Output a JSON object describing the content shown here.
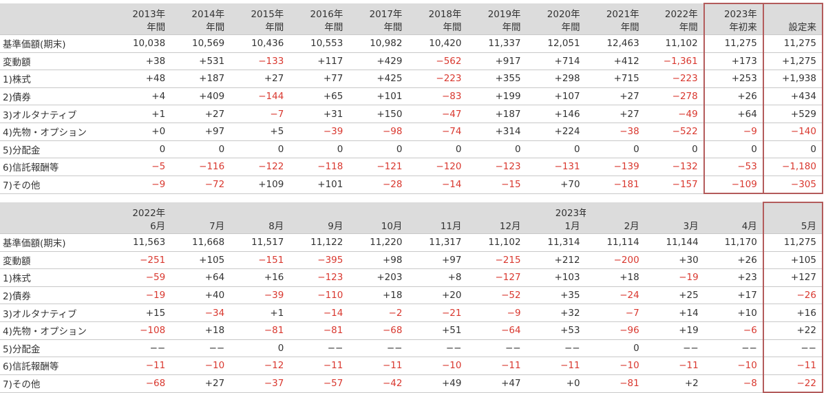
{
  "annual": {
    "columns": [
      {
        "l1": "2013年",
        "l2": "年間"
      },
      {
        "l1": "2014年",
        "l2": "年間"
      },
      {
        "l1": "2015年",
        "l2": "年間"
      },
      {
        "l1": "2016年",
        "l2": "年間"
      },
      {
        "l1": "2017年",
        "l2": "年間"
      },
      {
        "l1": "2018年",
        "l2": "年間"
      },
      {
        "l1": "2019年",
        "l2": "年間"
      },
      {
        "l1": "2020年",
        "l2": "年間"
      },
      {
        "l1": "2021年",
        "l2": "年間"
      },
      {
        "l1": "2022年",
        "l2": "年間"
      },
      {
        "l1": "2023年",
        "l2": "年初来"
      },
      {
        "l1": "",
        "l2": "設定来"
      }
    ],
    "rows": [
      {
        "label": "基準価額(期末)",
        "values": [
          "10,038",
          "10,569",
          "10,436",
          "10,553",
          "10,982",
          "10,420",
          "11,337",
          "12,051",
          "12,463",
          "11,102",
          "11,275",
          "11,275"
        ]
      },
      {
        "label": "変動額",
        "values": [
          "+38",
          "+531",
          "−133",
          "+117",
          "+429",
          "−562",
          "+917",
          "+714",
          "+412",
          "−1,361",
          "+173",
          "+1,275"
        ]
      },
      {
        "label": "1)株式",
        "values": [
          "+48",
          "+187",
          "+27",
          "+77",
          "+425",
          "−223",
          "+355",
          "+298",
          "+715",
          "−223",
          "+253",
          "+1,938"
        ]
      },
      {
        "label": "2)債券",
        "values": [
          "+4",
          "+409",
          "−144",
          "+65",
          "+101",
          "−83",
          "+199",
          "+107",
          "+27",
          "−278",
          "+26",
          "+434"
        ]
      },
      {
        "label": "3)オルタナティブ",
        "values": [
          "+1",
          "+27",
          "−7",
          "+31",
          "+150",
          "−47",
          "+187",
          "+146",
          "+27",
          "−49",
          "+64",
          "+529"
        ]
      },
      {
        "label": "4)先物・オプション",
        "values": [
          "+0",
          "+97",
          "+5",
          "−39",
          "−98",
          "−74",
          "+314",
          "+224",
          "−38",
          "−522",
          "−9",
          "−140"
        ]
      },
      {
        "label": "5)分配金",
        "values": [
          "0",
          "0",
          "0",
          "0",
          "0",
          "0",
          "0",
          "0",
          "0",
          "0",
          "0",
          "0"
        ]
      },
      {
        "label": "6)信託報酬等",
        "values": [
          "−5",
          "−116",
          "−122",
          "−118",
          "−121",
          "−120",
          "−123",
          "−131",
          "−139",
          "−132",
          "−53",
          "−1,180"
        ]
      },
      {
        "label": "7)その他",
        "values": [
          "−9",
          "−72",
          "+109",
          "+101",
          "−28",
          "−14",
          "−15",
          "+70",
          "−181",
          "−157",
          "−109",
          "−305"
        ]
      }
    ]
  },
  "monthly": {
    "year_2022": "2022年",
    "year_2023": "2023年",
    "months": [
      "6月",
      "7月",
      "8月",
      "9月",
      "10月",
      "11月",
      "12月",
      "1月",
      "2月",
      "3月",
      "4月",
      "5月"
    ],
    "rows": [
      {
        "label": "基準価額(期末)",
        "values": [
          "11,563",
          "11,668",
          "11,517",
          "11,122",
          "11,220",
          "11,317",
          "11,102",
          "11,314",
          "11,114",
          "11,144",
          "11,170",
          "11,275"
        ]
      },
      {
        "label": "変動額",
        "values": [
          "−251",
          "+105",
          "−151",
          "−395",
          "+98",
          "+97",
          "−215",
          "+212",
          "−200",
          "+30",
          "+26",
          "+105"
        ]
      },
      {
        "label": "1)株式",
        "values": [
          "−59",
          "+64",
          "+16",
          "−123",
          "+203",
          "+8",
          "−127",
          "+103",
          "+18",
          "−19",
          "+23",
          "+127"
        ]
      },
      {
        "label": "2)債券",
        "values": [
          "−19",
          "+40",
          "−39",
          "−110",
          "+18",
          "+20",
          "−52",
          "+35",
          "−24",
          "+25",
          "+17",
          "−26"
        ]
      },
      {
        "label": "3)オルタナティブ",
        "values": [
          "+15",
          "−34",
          "+1",
          "−14",
          "−2",
          "−21",
          "−9",
          "+32",
          "−7",
          "+14",
          "+10",
          "+16"
        ]
      },
      {
        "label": "4)先物・オプション",
        "values": [
          "−108",
          "+18",
          "−81",
          "−81",
          "−68",
          "+51",
          "−64",
          "+53",
          "−96",
          "+19",
          "−6",
          "+22"
        ]
      },
      {
        "label": "5)分配金",
        "values": [
          "−−",
          "−−",
          "0",
          "−−",
          "−−",
          "−−",
          "−−",
          "−−",
          "0",
          "−−",
          "−−",
          "−−"
        ]
      },
      {
        "label": "6)信託報酬等",
        "values": [
          "−11",
          "−10",
          "−12",
          "−11",
          "−11",
          "−10",
          "−11",
          "−11",
          "−10",
          "−11",
          "−10",
          "−11"
        ]
      },
      {
        "label": "7)その他",
        "values": [
          "−68",
          "+27",
          "−37",
          "−57",
          "−42",
          "+49",
          "+47",
          "+0",
          "−81",
          "+2",
          "−8",
          "−22"
        ]
      }
    ]
  }
}
